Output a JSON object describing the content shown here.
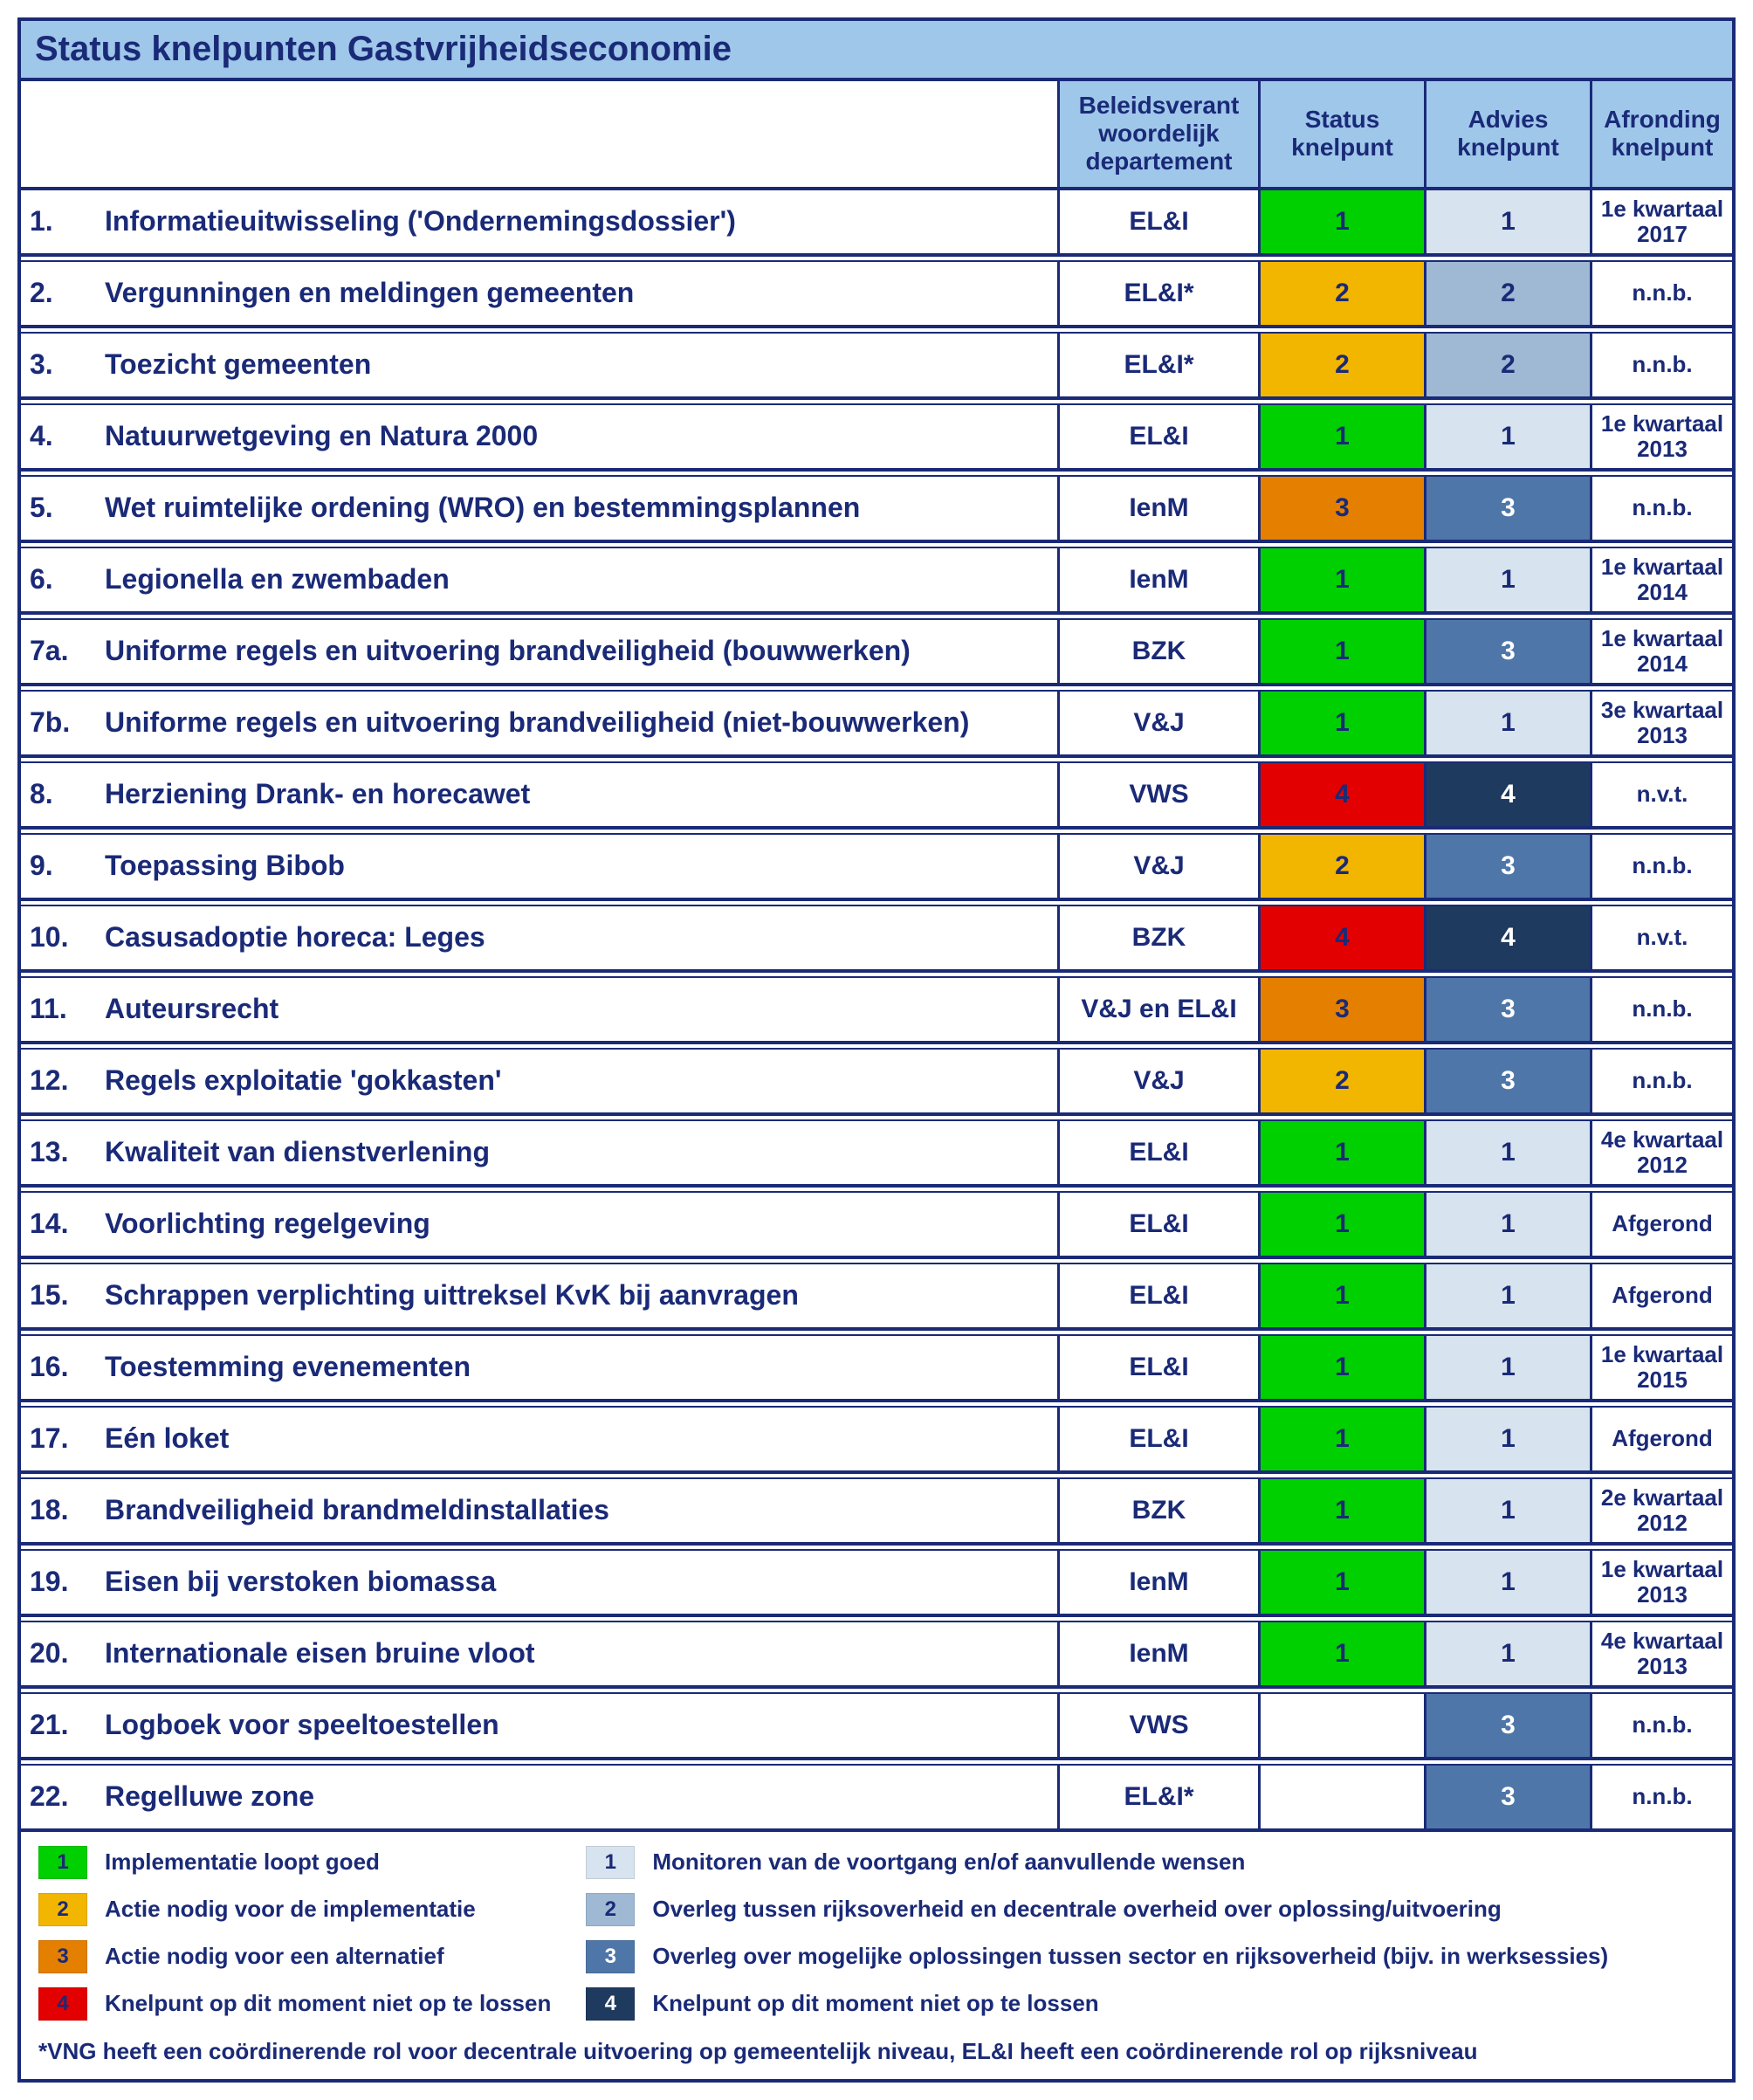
{
  "title": "Status knelpunten Gastvrijheidseconomie",
  "headers": {
    "dept": "Beleidsverant\nwoordelijk\ndepartement",
    "status": "Status\nknelpunt",
    "advies": "Advies\nknelpunt",
    "afronding": "Afronding\nknelpunt"
  },
  "colors": {
    "status": {
      "1": "#00d000",
      "2": "#f3b600",
      "3": "#e47f00",
      "4": "#e30000"
    },
    "advies": {
      "1": "#d7e3ee",
      "2": "#9fb9d4",
      "3": "#4f76a8",
      "4": "#1f3a5f"
    },
    "advies_dark": [
      "3",
      "4"
    ],
    "text": "#1a2a77",
    "header_bg": "#9fc7ea",
    "border": "#1a2a77"
  },
  "rows": [
    {
      "num": "1.",
      "topic": "Informatieuitwisseling ('Ondernemingsdossier')",
      "dept": "EL&I",
      "status": "1",
      "advies": "1",
      "afronding": "1e kwartaal 2017"
    },
    {
      "num": "2.",
      "topic": "Vergunningen en meldingen gemeenten",
      "dept": "EL&I*",
      "status": "2",
      "advies": "2",
      "afronding": "n.n.b."
    },
    {
      "num": "3.",
      "topic": "Toezicht gemeenten",
      "dept": "EL&I*",
      "status": "2",
      "advies": "2",
      "afronding": "n.n.b."
    },
    {
      "num": "4.",
      "topic": "Natuurwetgeving en Natura 2000",
      "dept": "EL&I",
      "status": "1",
      "advies": "1",
      "afronding": "1e kwartaal 2013"
    },
    {
      "num": "5.",
      "topic": "Wet ruimtelijke ordening (WRO) en bestemmingsplannen",
      "dept": "IenM",
      "status": "3",
      "advies": "3",
      "afronding": "n.n.b."
    },
    {
      "num": "6.",
      "topic": "Legionella en zwembaden",
      "dept": "IenM",
      "status": "1",
      "advies": "1",
      "afronding": "1e kwartaal 2014"
    },
    {
      "num": "7a.",
      "topic": "Uniforme regels en uitvoering brandveiligheid (bouwwerken)",
      "dept": "BZK",
      "status": "1",
      "advies": "3",
      "afronding": "1e kwartaal 2014"
    },
    {
      "num": "7b.",
      "topic": "Uniforme regels en uitvoering brandveiligheid (niet-bouwwerken)",
      "dept": "V&J",
      "status": "1",
      "advies": "1",
      "afronding": "3e kwartaal 2013"
    },
    {
      "num": "8.",
      "topic": "Herziening Drank- en horecawet",
      "dept": "VWS",
      "status": "4",
      "advies": "4",
      "afronding": "n.v.t."
    },
    {
      "num": "9.",
      "topic": "Toepassing Bibob",
      "dept": "V&J",
      "status": "2",
      "advies": "3",
      "afronding": "n.n.b."
    },
    {
      "num": "10.",
      "topic": "Casusadoptie horeca: Leges",
      "dept": "BZK",
      "status": "4",
      "advies": "4",
      "afronding": "n.v.t."
    },
    {
      "num": "11.",
      "topic": "Auteursrecht",
      "dept": "V&J en EL&I",
      "status": "3",
      "advies": "3",
      "afronding": "n.n.b."
    },
    {
      "num": "12.",
      "topic": "Regels exploitatie 'gokkasten'",
      "dept": "V&J",
      "status": "2",
      "advies": "3",
      "afronding": "n.n.b."
    },
    {
      "num": "13.",
      "topic": "Kwaliteit van dienstverlening",
      "dept": "EL&I",
      "status": "1",
      "advies": "1",
      "afronding": "4e kwartaal 2012"
    },
    {
      "num": "14.",
      "topic": "Voorlichting regelgeving",
      "dept": "EL&I",
      "status": "1",
      "advies": "1",
      "afronding": "Afgerond"
    },
    {
      "num": "15.",
      "topic": "Schrappen verplichting uittreksel KvK bij aanvragen",
      "dept": "EL&I",
      "status": "1",
      "advies": "1",
      "afronding": "Afgerond"
    },
    {
      "num": "16.",
      "topic": "Toestemming evenementen",
      "dept": "EL&I",
      "status": "1",
      "advies": "1",
      "afronding": "1e kwartaal 2015"
    },
    {
      "num": "17.",
      "topic": "Eén loket",
      "dept": "EL&I",
      "status": "1",
      "advies": "1",
      "afronding": "Afgerond"
    },
    {
      "num": "18.",
      "topic": "Brandveiligheid brandmeldinstallaties",
      "dept": "BZK",
      "status": "1",
      "advies": "1",
      "afronding": "2e kwartaal 2012"
    },
    {
      "num": "19.",
      "topic": "Eisen bij verstoken biomassa",
      "dept": "IenM",
      "status": "1",
      "advies": "1",
      "afronding": "1e kwartaal 2013"
    },
    {
      "num": "20.",
      "topic": "Internationale eisen bruine vloot",
      "dept": "IenM",
      "status": "1",
      "advies": "1",
      "afronding": "4e kwartaal 2013"
    },
    {
      "num": "21.",
      "topic": "Logboek voor speeltoestellen",
      "dept": "VWS",
      "status": "",
      "advies": "3",
      "afronding": "n.n.b."
    },
    {
      "num": "22.",
      "topic": "Regelluwe zone",
      "dept": "EL&I*",
      "status": "",
      "advies": "3",
      "afronding": "n.n.b."
    }
  ],
  "legend": {
    "status": [
      {
        "code": "1",
        "label": "Implementatie loopt goed"
      },
      {
        "code": "2",
        "label": "Actie nodig voor de implementatie"
      },
      {
        "code": "3",
        "label": "Actie nodig voor een alternatief"
      },
      {
        "code": "4",
        "label": "Knelpunt op dit moment niet op te lossen"
      }
    ],
    "advies": [
      {
        "code": "1",
        "label": "Monitoren van de voortgang en/of aanvullende wensen"
      },
      {
        "code": "2",
        "label": "Overleg tussen rijksoverheid en decentrale overheid over oplossing/uitvoering"
      },
      {
        "code": "3",
        "label": "Overleg over mogelijke oplossingen tussen sector en rijksoverheid (bijv. in werksessies)"
      },
      {
        "code": "4",
        "label": "Knelpunt op dit moment niet op te lossen"
      }
    ]
  },
  "footnote": "*VNG heeft een coördinerende rol voor decentrale uitvoering op gemeentelijk niveau, EL&I heeft een coördinerende rol op rijksniveau"
}
